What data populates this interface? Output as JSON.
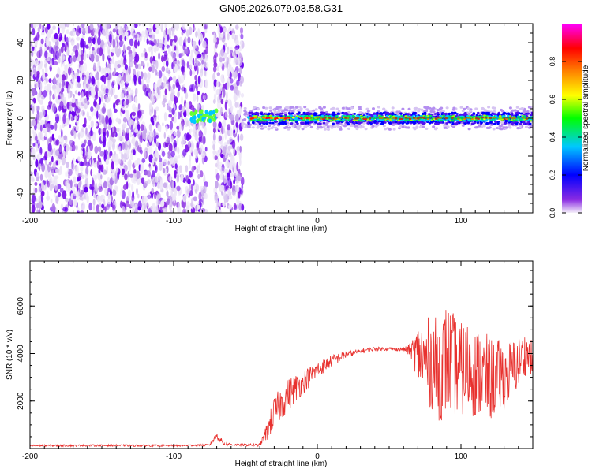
{
  "title": "GN05.2026.079.03.58.G31",
  "chart_data": [
    {
      "type": "heatmap",
      "title": "GN05.2026.079.03.58.G31",
      "xlabel": "Height of straight line (km)",
      "ylabel": "Frequency (Hz)",
      "xlim": [
        -200,
        150
      ],
      "ylim": [
        -50,
        50
      ],
      "xticks": [
        -200,
        -100,
        0,
        100
      ],
      "xtick_labels": [
        "-200",
        "-100",
        "0",
        "100"
      ],
      "yticks": [
        -40,
        -20,
        0,
        20,
        40
      ],
      "ytick_labels": [
        "-40",
        "-20",
        "0",
        "20",
        "40"
      ],
      "noise_region_x": [
        -200,
        -52
      ],
      "gap_x": [
        -77,
        -72
      ],
      "signal_start_x": -48,
      "signal_center_hz": 0,
      "colorbar": {
        "label": "Normalized spectral amplitude",
        "range": [
          0,
          1
        ],
        "ticks": [
          0.0,
          0.2,
          0.4,
          0.6,
          0.8
        ],
        "tick_labels": [
          "0.0",
          "0.2",
          "0.4",
          "0.6",
          "0.8"
        ],
        "colormap": [
          "#f5f0fa",
          "#8a2be2",
          "#0000ff",
          "#00c8ff",
          "#00ff00",
          "#ffff00",
          "#ff8000",
          "#ff0000",
          "#ff00ff"
        ]
      }
    },
    {
      "type": "line",
      "xlabel": "Height of straight line (km)",
      "ylabel": "SNR (10 * v/v)",
      "xlim": [
        -200,
        150
      ],
      "ylim": [
        0,
        7900
      ],
      "xticks": [
        -200,
        -100,
        0,
        100
      ],
      "xtick_labels": [
        "-200",
        "-100",
        "0",
        "100"
      ],
      "yticks": [
        2000,
        4000,
        6000
      ],
      "ytick_labels": [
        "2000",
        "4000",
        "6000"
      ],
      "color": "#e8312e",
      "series": [
        {
          "name": "SNR",
          "envelope_x": [
            -200,
            -150,
            -100,
            -75,
            -70,
            -65,
            -55,
            -40,
            -35,
            -30,
            -20,
            -10,
            0,
            10,
            20,
            30,
            40,
            50,
            60,
            65,
            70,
            75,
            80,
            85,
            90,
            95,
            100,
            105,
            110,
            115,
            120,
            125,
            130,
            135,
            140,
            145,
            150
          ],
          "envelope_y": [
            120,
            130,
            120,
            150,
            550,
            200,
            150,
            150,
            700,
            1500,
            2300,
            2800,
            3300,
            3700,
            3950,
            4100,
            4200,
            4200,
            4180,
            4150,
            4000,
            3700,
            3600,
            3300,
            3800,
            3500,
            3300,
            3400,
            3200,
            3100,
            2900,
            3000,
            3100,
            3300,
            3600,
            4000,
            3800
          ],
          "noise_amplitude": [
            40,
            40,
            40,
            40,
            150,
            80,
            40,
            60,
            400,
            700,
            700,
            500,
            350,
            250,
            150,
            100,
            80,
            70,
            80,
            300,
            1200,
            1800,
            2000,
            2200,
            2400,
            2200,
            2000,
            2000,
            1900,
            1900,
            1800,
            1600,
            1500,
            1300,
            1100,
            900,
            700
          ]
        }
      ]
    }
  ]
}
